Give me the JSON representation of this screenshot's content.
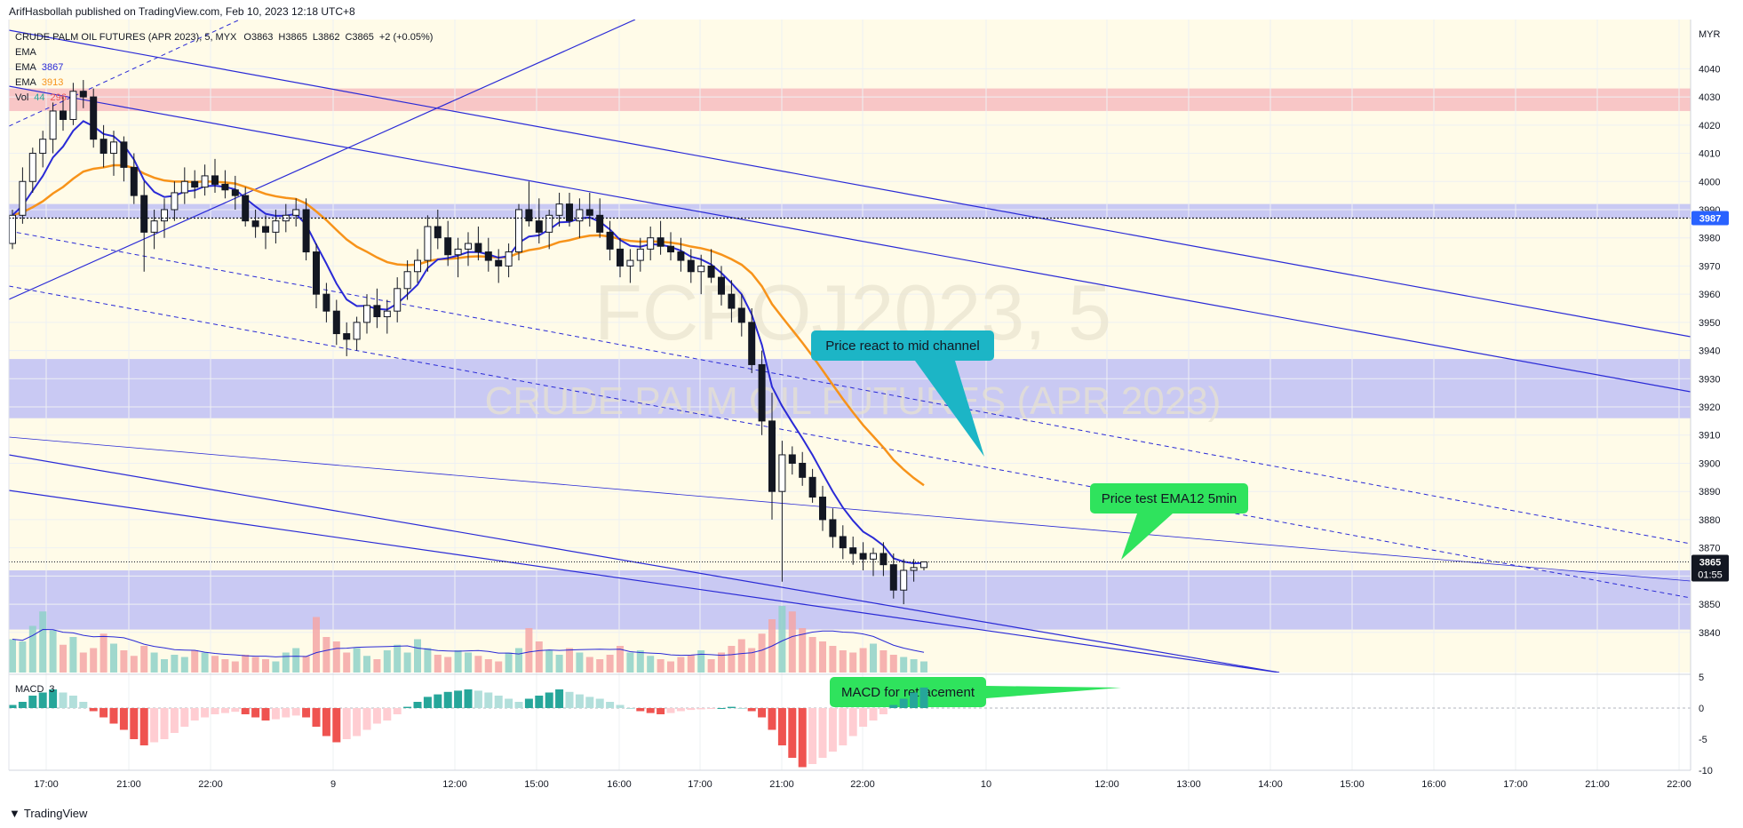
{
  "header": {
    "publisher": "ArifHasbollah published on TradingView.com, Feb 10, 2023 12:18 UTC+8"
  },
  "footer": {
    "brand": "TradingView"
  },
  "chart_data": {
    "type": "candlestick",
    "symbol_line": "CRUDE PALM OIL FUTURES (APR 2023), 5, MYX",
    "ohlc_readout": {
      "open": "O3863",
      "high": "H3865",
      "low": "L3862",
      "close": "C3865",
      "change": "+2 (+0.05%)"
    },
    "indicator_legend": [
      {
        "label": "EMA",
        "value": "",
        "color": "#131722"
      },
      {
        "label": "EMA",
        "value": "3867",
        "color": "#2a2ad6"
      },
      {
        "label": "EMA",
        "value": "3913",
        "color": "#f7931a"
      },
      {
        "label": "Vol",
        "value": "44",
        "value2": "296",
        "color": "#26a69a"
      }
    ],
    "watermark": {
      "symbol": "FCPOJ2023, 5",
      "name": "CRUDE PALM OIL FUTURES (APR 2023)"
    },
    "currency": "MYR",
    "y_ticks": [
      4040,
      4030,
      4020,
      4010,
      4000,
      3990,
      3980,
      3970,
      3960,
      3950,
      3940,
      3930,
      3920,
      3910,
      3900,
      3890,
      3880,
      3870,
      3860,
      3850,
      3840
    ],
    "ylim": [
      3833,
      4048
    ],
    "x_ticks": [
      "17:00",
      "21:00",
      "22:00",
      "9",
      "12:00",
      "15:00",
      "16:00",
      "17:00",
      "21:00",
      "22:00",
      "10",
      "12:00",
      "13:00",
      "14:00",
      "15:00",
      "16:00",
      "17:00",
      "21:00",
      "22:00"
    ],
    "price_labels": [
      {
        "value": 3987,
        "text": "3987",
        "color": "#2962ff"
      },
      {
        "value": 3865,
        "text": "3865",
        "sub": "01:55",
        "color": "#131722"
      }
    ],
    "zones": [
      {
        "from": 4025,
        "to": 4033,
        "color": "#f8c6c6"
      },
      {
        "from": 3987,
        "to": 3992,
        "color": "#c9c9f3"
      },
      {
        "from": 3916,
        "to": 3937,
        "color": "#c9c9f3"
      },
      {
        "from": 3841,
        "to": 3862,
        "color": "#c9c9f3"
      }
    ],
    "annotations": [
      {
        "text": "Price react to mid channel",
        "bg": "#1cb5c6"
      },
      {
        "text": "Price test EMA12 5min",
        "bg": "#2fe35d"
      },
      {
        "text": "MACD for retracement",
        "bg": "#2fe35d"
      }
    ],
    "candles": [
      [
        3978,
        3990,
        3976,
        3988
      ],
      [
        3988,
        4005,
        3985,
        4000
      ],
      [
        4000,
        4012,
        3996,
        4010
      ],
      [
        4010,
        4018,
        4005,
        4015
      ],
      [
        4015,
        4028,
        4010,
        4025
      ],
      [
        4025,
        4030,
        4018,
        4022
      ],
      [
        4022,
        4035,
        4020,
        4032
      ],
      [
        4032,
        4036,
        4026,
        4030
      ],
      [
        4030,
        4033,
        4012,
        4015
      ],
      [
        4015,
        4020,
        4005,
        4010
      ],
      [
        4010,
        4018,
        4002,
        4014
      ],
      [
        4014,
        4016,
        4000,
        4005
      ],
      [
        4005,
        4010,
        3992,
        3995
      ],
      [
        3995,
        4000,
        3968,
        3982
      ],
      [
        3982,
        3990,
        3976,
        3986
      ],
      [
        3986,
        3994,
        3980,
        3990
      ],
      [
        3990,
        4000,
        3986,
        3996
      ],
      [
        3996,
        4005,
        3992,
        4000
      ],
      [
        4000,
        4004,
        3994,
        3998
      ],
      [
        3998,
        4006,
        3995,
        4002
      ],
      [
        4002,
        4008,
        3996,
        3999
      ],
      [
        3999,
        4004,
        3994,
        3997
      ],
      [
        3997,
        4002,
        3990,
        3995
      ],
      [
        3995,
        3998,
        3984,
        3986
      ],
      [
        3986,
        3990,
        3980,
        3984
      ],
      [
        3984,
        3988,
        3976,
        3982
      ],
      [
        3982,
        3990,
        3978,
        3986
      ],
      [
        3986,
        3992,
        3982,
        3988
      ],
      [
        3988,
        3994,
        3984,
        3990
      ],
      [
        3990,
        3994,
        3972,
        3975
      ],
      [
        3975,
        3978,
        3955,
        3960
      ],
      [
        3960,
        3964,
        3950,
        3954
      ],
      [
        3954,
        3958,
        3942,
        3946
      ],
      [
        3946,
        3950,
        3938,
        3944
      ],
      [
        3944,
        3952,
        3940,
        3950
      ],
      [
        3950,
        3960,
        3946,
        3956
      ],
      [
        3956,
        3962,
        3948,
        3952
      ],
      [
        3952,
        3958,
        3946,
        3954
      ],
      [
        3954,
        3966,
        3950,
        3962
      ],
      [
        3962,
        3972,
        3958,
        3968
      ],
      [
        3968,
        3976,
        3964,
        3972
      ],
      [
        3972,
        3988,
        3968,
        3984
      ],
      [
        3984,
        3990,
        3976,
        3980
      ],
      [
        3980,
        3986,
        3970,
        3974
      ],
      [
        3974,
        3980,
        3966,
        3976
      ],
      [
        3976,
        3982,
        3970,
        3978
      ],
      [
        3978,
        3984,
        3972,
        3975
      ],
      [
        3975,
        3980,
        3968,
        3972
      ],
      [
        3972,
        3976,
        3964,
        3970
      ],
      [
        3970,
        3978,
        3966,
        3975
      ],
      [
        3975,
        3992,
        3972,
        3990
      ],
      [
        3990,
        4000,
        3984,
        3986
      ],
      [
        3986,
        3994,
        3978,
        3982
      ],
      [
        3982,
        3990,
        3976,
        3988
      ],
      [
        3988,
        3996,
        3984,
        3992
      ],
      [
        3992,
        3996,
        3984,
        3986
      ],
      [
        3986,
        3994,
        3980,
        3990
      ],
      [
        3990,
        3996,
        3984,
        3988
      ],
      [
        3988,
        3994,
        3980,
        3982
      ],
      [
        3982,
        3986,
        3972,
        3976
      ],
      [
        3976,
        3980,
        3966,
        3970
      ],
      [
        3970,
        3976,
        3964,
        3972
      ],
      [
        3972,
        3980,
        3968,
        3976
      ],
      [
        3976,
        3984,
        3972,
        3980
      ],
      [
        3980,
        3986,
        3974,
        3977
      ],
      [
        3977,
        3982,
        3972,
        3975
      ],
      [
        3975,
        3980,
        3968,
        3972
      ],
      [
        3972,
        3976,
        3964,
        3968
      ],
      [
        3968,
        3974,
        3960,
        3970
      ],
      [
        3970,
        3976,
        3964,
        3966
      ],
      [
        3966,
        3970,
        3956,
        3960
      ],
      [
        3960,
        3965,
        3950,
        3955
      ],
      [
        3955,
        3960,
        3945,
        3950
      ],
      [
        3950,
        3955,
        3932,
        3935
      ],
      [
        3935,
        3940,
        3910,
        3915
      ],
      [
        3915,
        3925,
        3880,
        3890
      ],
      [
        3890,
        3908,
        3858,
        3903
      ],
      [
        3903,
        3906,
        3896,
        3900
      ],
      [
        3900,
        3904,
        3892,
        3895
      ],
      [
        3895,
        3898,
        3886,
        3888
      ],
      [
        3888,
        3892,
        3876,
        3880
      ],
      [
        3880,
        3884,
        3870,
        3874
      ],
      [
        3874,
        3878,
        3866,
        3870
      ],
      [
        3870,
        3874,
        3864,
        3868
      ],
      [
        3868,
        3872,
        3862,
        3866
      ],
      [
        3866,
        3870,
        3860,
        3868
      ],
      [
        3868,
        3872,
        3860,
        3864
      ],
      [
        3864,
        3868,
        3852,
        3855
      ],
      [
        3855,
        3866,
        3850,
        3862
      ],
      [
        3862,
        3866,
        3858,
        3863
      ],
      [
        3863,
        3865,
        3862,
        3865
      ]
    ],
    "volume": [
      30,
      28,
      42,
      55,
      38,
      25,
      32,
      18,
      22,
      35,
      26,
      20,
      15,
      24,
      18,
      12,
      16,
      14,
      20,
      18,
      15,
      12,
      10,
      16,
      14,
      12,
      10,
      18,
      22,
      15,
      50,
      32,
      28,
      18,
      22,
      15,
      12,
      20,
      25,
      18,
      30,
      22,
      16,
      14,
      20,
      18,
      15,
      12,
      10,
      18,
      22,
      40,
      28,
      20,
      16,
      22,
      18,
      14,
      12,
      16,
      24,
      18,
      20,
      15,
      12,
      10,
      14,
      16,
      20,
      12,
      18,
      24,
      30,
      22,
      35,
      48,
      60,
      55,
      40,
      32,
      28,
      24,
      20,
      18,
      22,
      26,
      20,
      16,
      14,
      12,
      10
    ],
    "macd": [
      0.5,
      1.0,
      2.0,
      2.5,
      3.0,
      2.5,
      2.0,
      1.0,
      -0.5,
      -1.5,
      -2.5,
      -3.5,
      -5.0,
      -6.0,
      -5.5,
      -5.0,
      -4.0,
      -3.0,
      -2.0,
      -1.5,
      -1.0,
      -0.8,
      -0.6,
      -1.0,
      -1.5,
      -2.0,
      -1.8,
      -1.5,
      -1.2,
      -1.5,
      -3.0,
      -4.5,
      -5.5,
      -5.0,
      -4.5,
      -3.5,
      -2.5,
      -2.0,
      -1.0,
      0.2,
      1.0,
      1.8,
      2.2,
      2.6,
      2.8,
      3.0,
      2.8,
      2.5,
      2.0,
      1.5,
      1.0,
      1.5,
      2.0,
      2.5,
      3.0,
      2.6,
      2.2,
      1.8,
      1.5,
      1.0,
      0.5,
      0.0,
      -0.5,
      -0.8,
      -1.0,
      -0.8,
      -0.5,
      -0.3,
      -0.2,
      -0.1,
      0.0,
      0.2,
      0.0,
      -0.5,
      -1.5,
      -3.5,
      -6.0,
      -8.0,
      -9.5,
      -9.0,
      -8.0,
      -7.0,
      -6.0,
      -4.5,
      -3.0,
      -2.0,
      -1.0,
      0.5,
      1.5,
      2.5,
      3.3
    ],
    "macd_axis": {
      "ticks": [
        5,
        0,
        -5,
        -10
      ],
      "label": "MACD",
      "label_value": "3"
    }
  }
}
